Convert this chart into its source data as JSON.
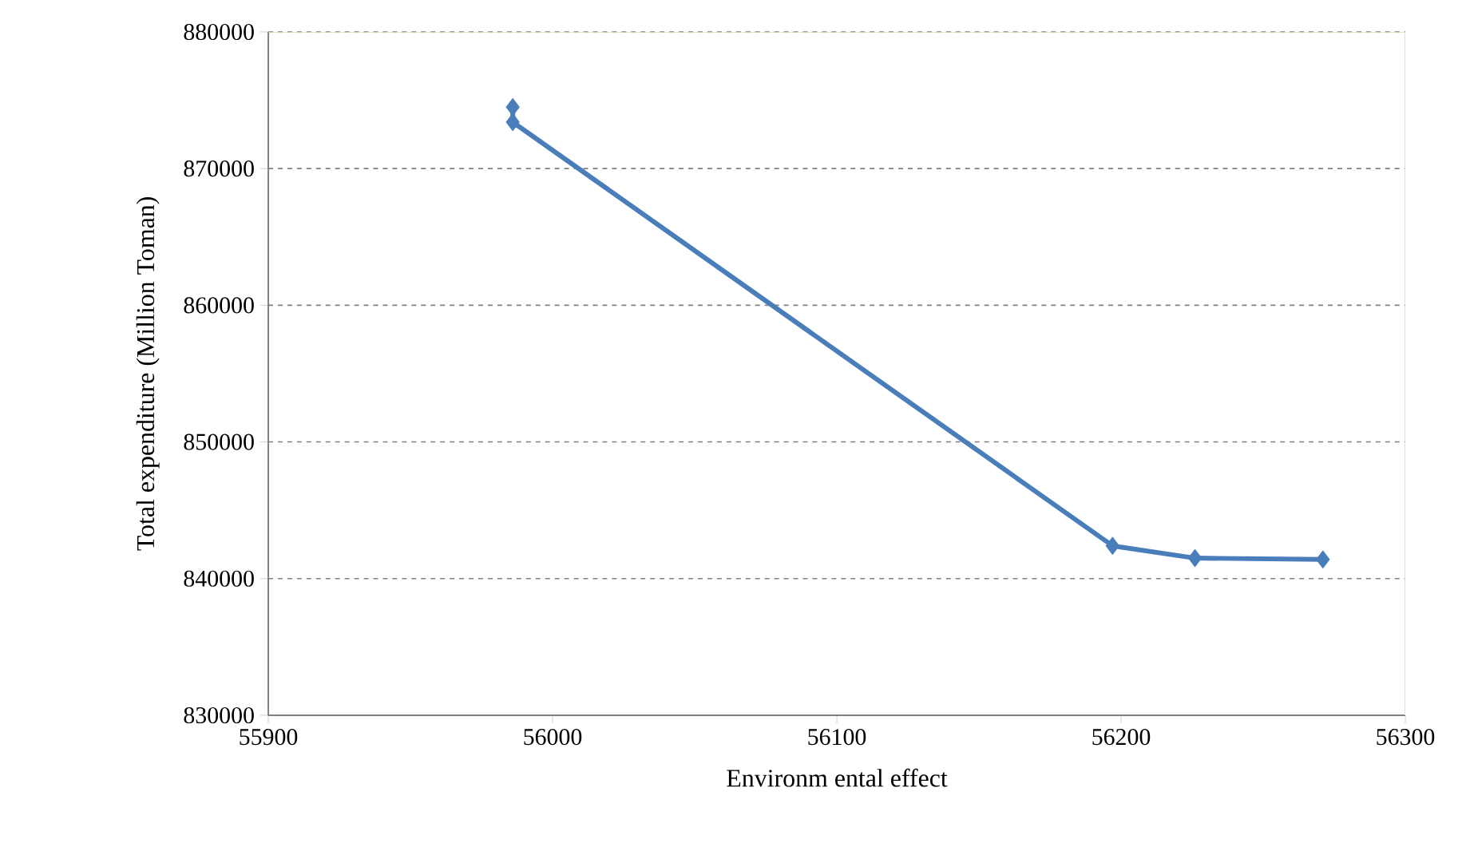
{
  "chart_data": {
    "type": "line",
    "xlabel": "Environm ental effect",
    "ylabel": "Total expenditure (Million Toman)",
    "series": [
      {
        "color": "#4a7ebb",
        "x": [
          55986,
          55986,
          56197,
          56226,
          56271
        ],
        "values": [
          874500,
          873400,
          842400,
          841500,
          841400
        ]
      }
    ],
    "xlim": [
      55900,
      56300
    ],
    "xticks": [
      55900,
      56000,
      56100,
      56200,
      56300
    ],
    "ylim": [
      830000,
      880000
    ],
    "yticks": [
      830000,
      840000,
      850000,
      860000,
      870000,
      880000
    ],
    "grid": "y",
    "marker": "diamond",
    "line_style": "solid"
  }
}
